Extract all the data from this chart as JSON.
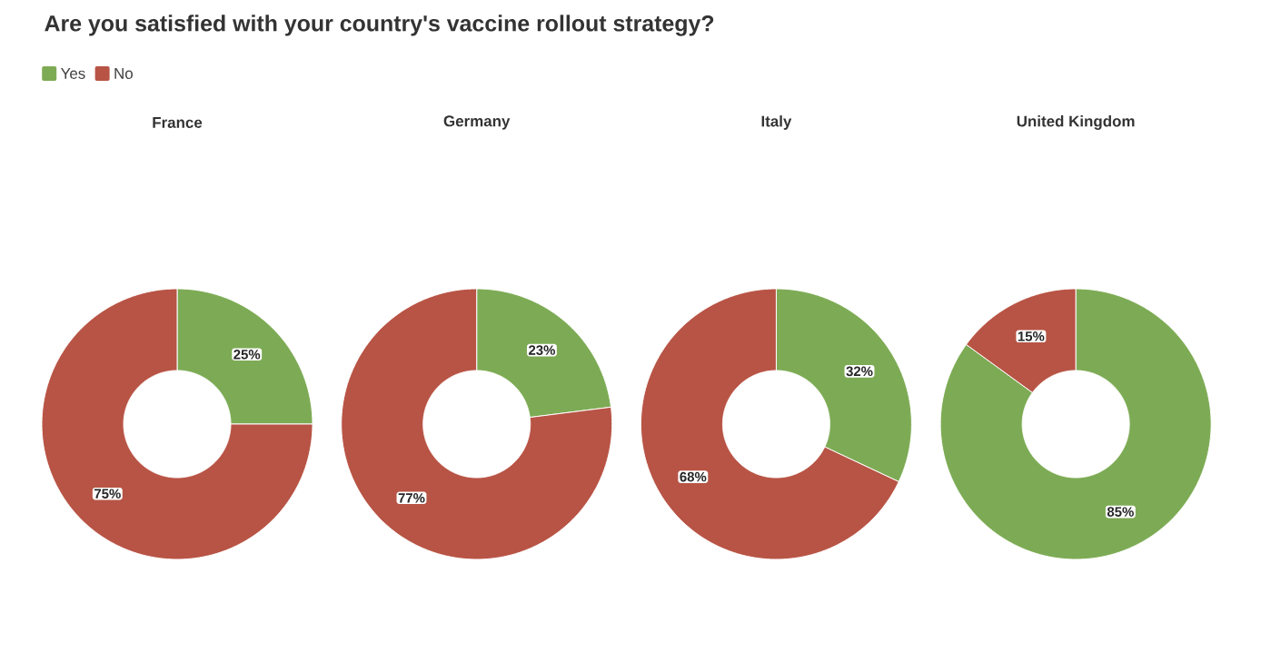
{
  "chart_data": [
    {
      "type": "other",
      "title": "Are you satisfied with your country's vaccine rollout strategy?"
    },
    {
      "type": "donut",
      "title": "France",
      "categories": [
        "Yes",
        "No"
      ],
      "values": [
        25,
        75
      ],
      "colors": [
        "#7dab55",
        "#b85445"
      ],
      "value_labels": [
        "25%",
        "75%"
      ],
      "legend": "top left"
    },
    {
      "type": "donut",
      "title": "Germany",
      "categories": [
        null,
        null
      ],
      "values": [
        23,
        77
      ],
      "colors": [
        "#7dab55",
        "#b85445"
      ],
      "value_labels": [
        "23%",
        "77%"
      ]
    },
    {
      "type": "donut",
      "title": "Italy",
      "categories": [
        null,
        null
      ],
      "values": [
        32,
        68
      ],
      "colors": [
        "#7dab55",
        "#b85445"
      ],
      "value_labels": [
        "32%",
        "68%"
      ]
    },
    {
      "type": "donut",
      "title": "United Kingdom",
      "categories": [
        null,
        null
      ],
      "values": [
        85,
        15
      ],
      "colors": [
        "#7dab55",
        "#b85445"
      ],
      "value_labels": [
        "85%",
        "15%"
      ]
    }
  ]
}
